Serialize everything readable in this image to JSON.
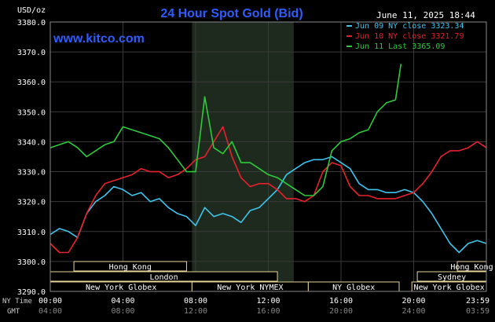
{
  "chart_data": {
    "type": "line",
    "title": "24 Hour Spot Gold (Bid)",
    "watermark": "www.kitco.com",
    "datestamp": "June 11, 2025 18:44",
    "ylabel": "USD/oz",
    "ylim": [
      3290,
      3380
    ],
    "yticks": [
      "3380.0",
      "3370.0",
      "3360.0",
      "3350.0",
      "3340.0",
      "3330.0",
      "3320.0",
      "3310.0",
      "3300.0",
      "3290.0"
    ],
    "xlim": [
      0,
      24
    ],
    "xticks_ny": [
      "00:00",
      "04:00",
      "08:00",
      "12:00",
      "16:00",
      "20:00",
      "23:59"
    ],
    "xticks_gmt": [
      "04:00",
      "08:00",
      "12:00",
      "16:00",
      "20:00",
      "24:00",
      "03:59"
    ],
    "x_row_label_ny": "NY Time",
    "x_row_label_gmt": "GMT",
    "shaded_range": [
      7.8,
      13.4
    ],
    "grid": true,
    "legend_position": "top-right",
    "series": [
      {
        "name": "Jun 09 NY close",
        "color": "#3fc4ec",
        "legend": "Jun 09 NY close 3323.34",
        "x": [
          0,
          0.5,
          1,
          1.5,
          2,
          2.5,
          3,
          3.5,
          4,
          4.5,
          5,
          5.5,
          6,
          6.5,
          7,
          7.5,
          8,
          8.5,
          9,
          9.5,
          10,
          10.5,
          11,
          11.5,
          12,
          12.5,
          13,
          13.5,
          14,
          14.5,
          15,
          15.5,
          16,
          16.5,
          17,
          17.5,
          18,
          18.5,
          19,
          19.5,
          20,
          20.5,
          21,
          21.5,
          22,
          22.5,
          23,
          23.5,
          24
        ],
        "y": [
          3309,
          3311,
          3310,
          3308,
          3316,
          3320,
          3322,
          3325,
          3324,
          3322,
          3323,
          3320,
          3321,
          3318,
          3316,
          3315,
          3312,
          3318,
          3315,
          3316,
          3315,
          3313,
          3317,
          3318,
          3321,
          3324,
          3329,
          3331,
          3333,
          3334,
          3334,
          3335,
          3333,
          3331,
          3326,
          3324,
          3324,
          3323,
          3323,
          3324,
          3323,
          3320,
          3316,
          3311,
          3306,
          3303,
          3306,
          3307,
          3306
        ]
      },
      {
        "name": "Jun 10 NY close",
        "color": "#e8212c",
        "legend": "Jun 10 NY close 3321.79",
        "x": [
          0,
          0.5,
          1,
          1.5,
          2,
          2.5,
          3,
          3.5,
          4,
          4.5,
          5,
          5.5,
          6,
          6.5,
          7,
          7.5,
          8,
          8.5,
          9,
          9.5,
          10,
          10.5,
          11,
          11.5,
          12,
          12.5,
          13,
          13.5,
          14,
          14.5,
          15,
          15.5,
          16,
          16.5,
          17,
          17.5,
          18,
          18.5,
          19,
          19.5,
          20,
          20.5,
          21,
          21.5,
          22,
          22.5,
          23,
          23.5,
          24
        ],
        "y": [
          3306,
          3303,
          3303,
          3308,
          3316,
          3322,
          3326,
          3327,
          3328,
          3329,
          3331,
          3330,
          3330,
          3328,
          3329,
          3331,
          3334,
          3335,
          3340,
          3345,
          3335,
          3328,
          3325,
          3326,
          3326,
          3324,
          3321,
          3321,
          3320,
          3322,
          3330,
          3333,
          3332,
          3325,
          3322,
          3322,
          3321,
          3321,
          3321,
          3322,
          3323,
          3326,
          3330,
          3335,
          3337,
          3337,
          3338,
          3340,
          3338
        ]
      },
      {
        "name": "Jun 11 Last",
        "color": "#2ccb3c",
        "legend": "Jun 11 Last 3365.09",
        "x": [
          0,
          0.5,
          1,
          1.5,
          2,
          2.5,
          3,
          3.5,
          4,
          4.5,
          5,
          5.5,
          6,
          6.5,
          7,
          7.5,
          8,
          8.5,
          9,
          9.5,
          10,
          10.5,
          11,
          11.5,
          12,
          12.5,
          13,
          13.5,
          14,
          14.5,
          15,
          15.5,
          16,
          16.5,
          17,
          17.5,
          18,
          18.5,
          19,
          19.3
        ],
        "y": [
          3338,
          3339,
          3340,
          3338,
          3335,
          3337,
          3339,
          3340,
          3345,
          3344,
          3343,
          3342,
          3341,
          3338,
          3334,
          3330,
          3330,
          3355,
          3338,
          3336,
          3340,
          3333,
          3333,
          3331,
          3329,
          3328,
          3326,
          3324,
          3322,
          3322,
          3325,
          3337,
          3340,
          3341,
          3343,
          3344,
          3350,
          3353,
          3354,
          3366
        ]
      }
    ],
    "sessions": [
      {
        "label": "Hong Kong",
        "start": 1.3,
        "end": 7.5,
        "row": 0
      },
      {
        "label": "Hong Kong",
        "start": 22.4,
        "end": 24.5,
        "row": 0
      },
      {
        "label": "London",
        "start": 0,
        "end": 12.5,
        "row": 1
      },
      {
        "label": "Sydney",
        "start": 20.2,
        "end": 24.5,
        "row": 1
      },
      {
        "label": "New York Globex",
        "start": 0,
        "end": 7.8,
        "row": 2
      },
      {
        "label": "New York NYMEX",
        "start": 7.8,
        "end": 14.2,
        "row": 2
      },
      {
        "label": "NY Globex",
        "start": 14.2,
        "end": 19.2,
        "row": 2
      },
      {
        "label": "New York Globex",
        "start": 19.9,
        "end": 24.5,
        "row": 2
      }
    ]
  }
}
